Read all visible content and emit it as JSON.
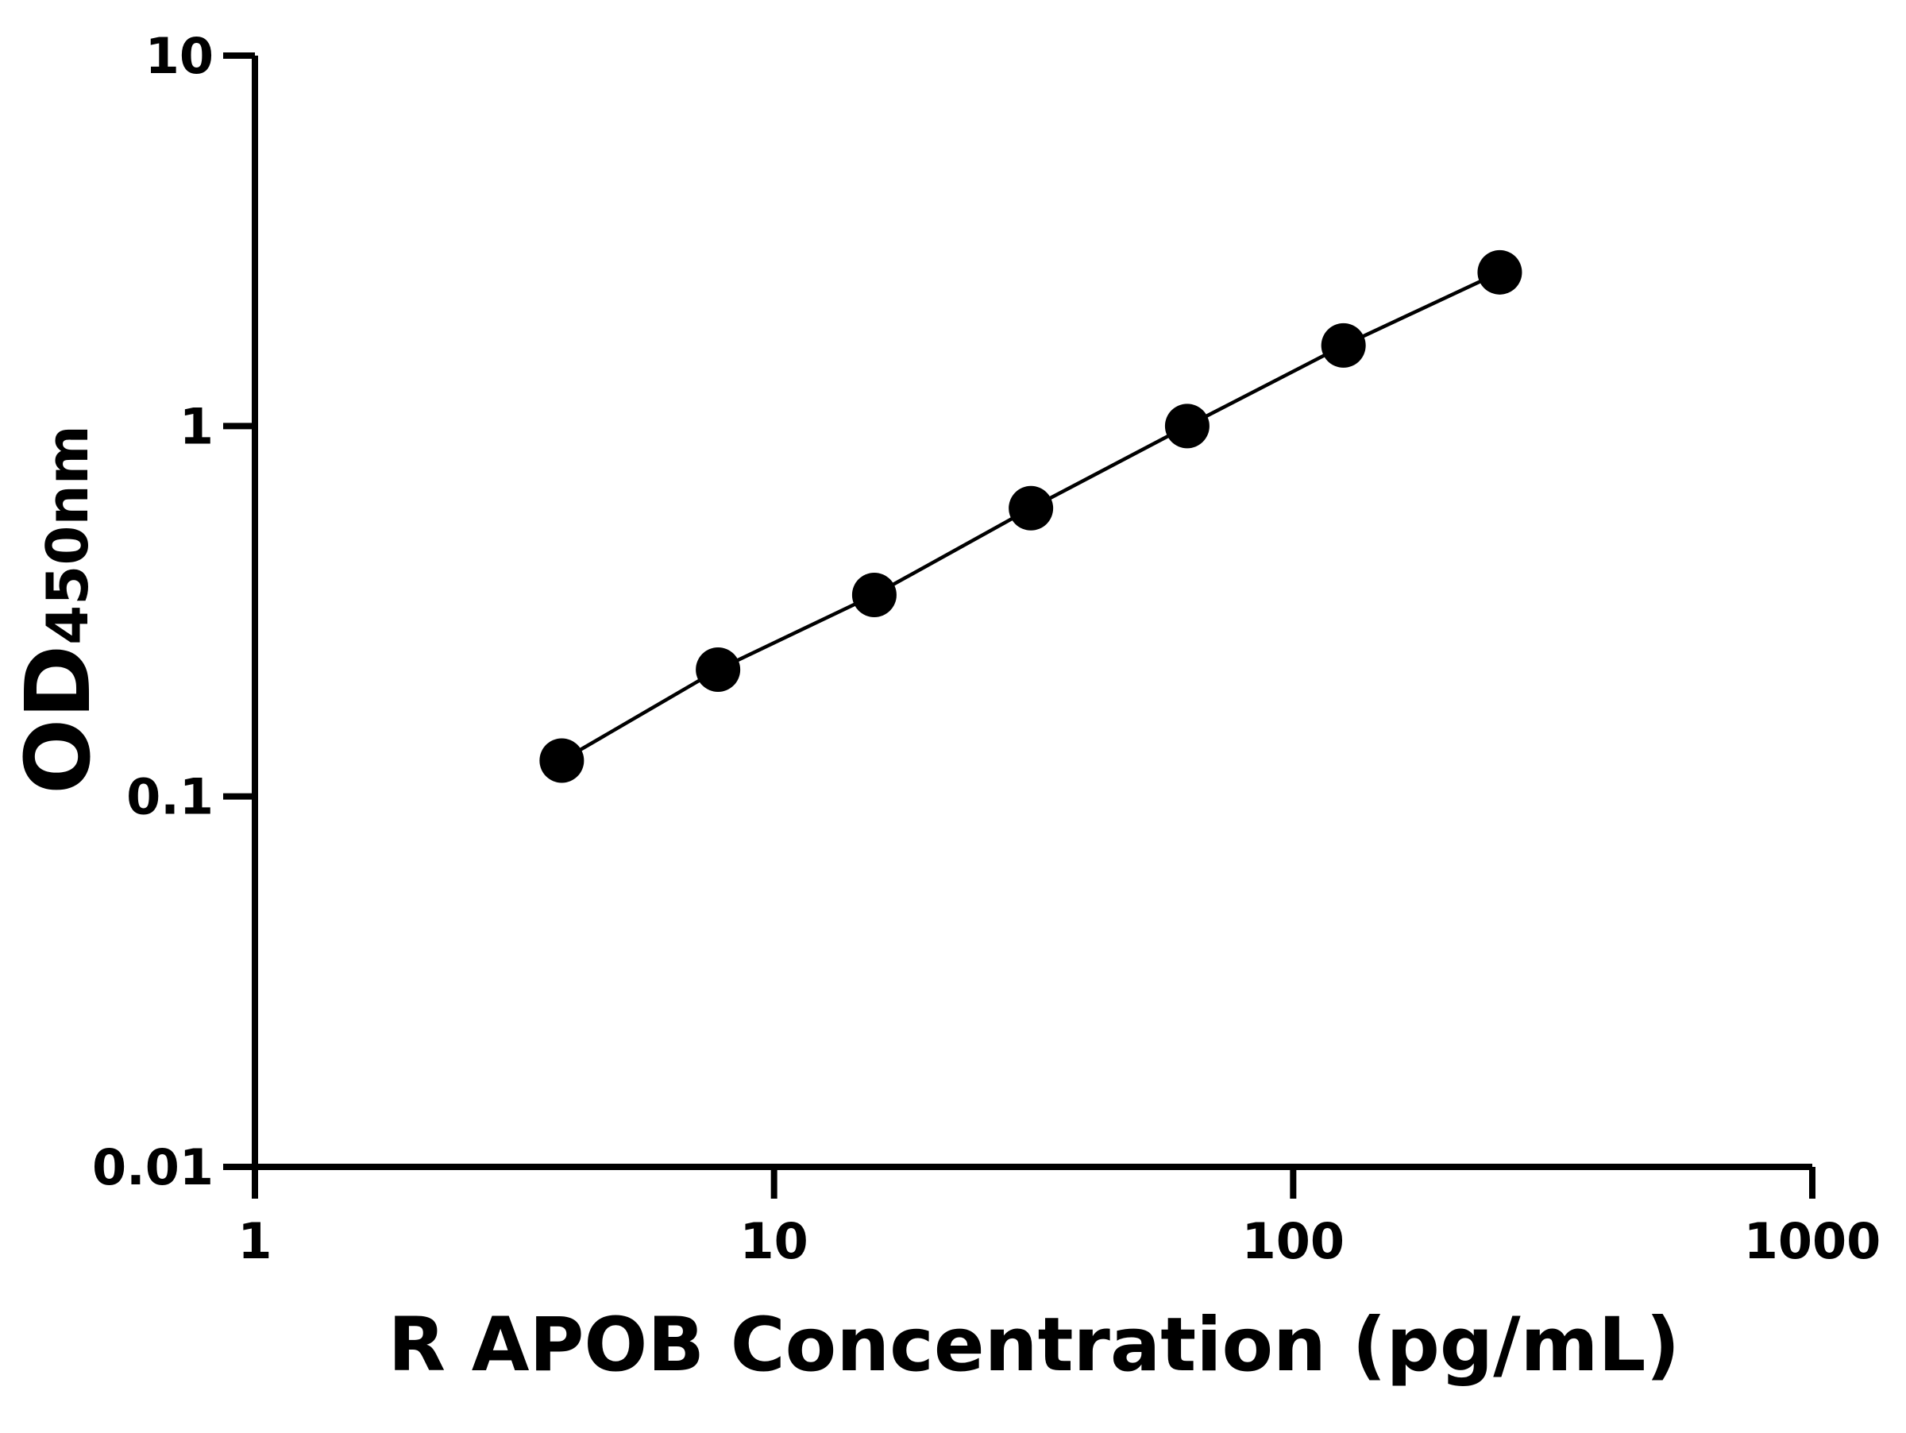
{
  "chart_data": {
    "type": "scatter-line",
    "xlabel": "R APOB Concentration (pg/mL)",
    "ylabel": "OD",
    "ylabel_sub": "450nm",
    "xscale": "log",
    "yscale": "log",
    "x": [
      3.9,
      7.8,
      15.6,
      31.25,
      62.5,
      125,
      250
    ],
    "values": [
      0.125,
      0.22,
      0.35,
      0.6,
      1.0,
      1.65,
      2.6
    ],
    "color": "#000000",
    "xlim": [
      1,
      1000
    ],
    "xticks": [
      1,
      10,
      100,
      1000
    ],
    "ylim": [
      0.01,
      10
    ],
    "yticks": [
      0.01,
      0.1,
      1,
      10
    ]
  }
}
